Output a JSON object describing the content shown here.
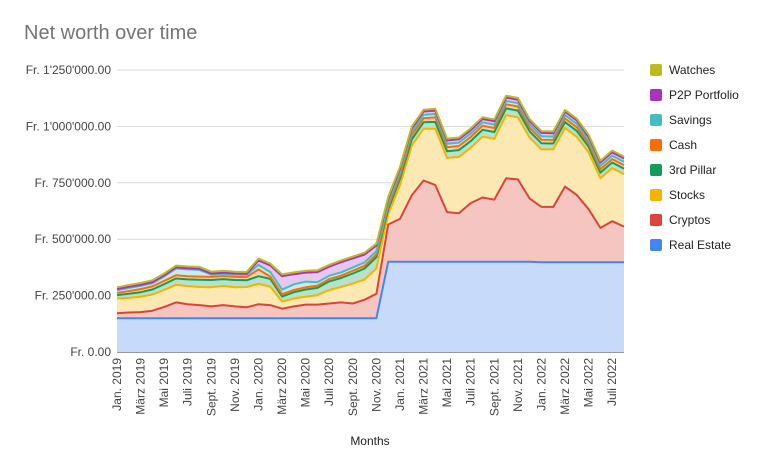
{
  "chart_data": {
    "type": "area",
    "stacked": true,
    "title": "Net worth over time",
    "xlabel": "Months",
    "ylabel": "",
    "ylim": [
      0,
      1250000
    ],
    "y_ticks": [
      0,
      250000,
      500000,
      750000,
      1000000,
      1250000
    ],
    "y_tick_labels": [
      "Fr. 0.00",
      "Fr. 250'000.00",
      "Fr. 500'000.00",
      "Fr. 750'000.00",
      "Fr. 1'000'000.00",
      "Fr. 1'250'000.00"
    ],
    "grid": true,
    "legend_position": "right",
    "categories": [
      "Jan. 2019",
      "Feb. 2019",
      "März 2019",
      "Apr. 2019",
      "Mai 2019",
      "Juni 2019",
      "Juli 2019",
      "Aug. 2019",
      "Sept. 2019",
      "Okt. 2019",
      "Nov. 2019",
      "Dez. 2019",
      "Jan. 2020",
      "Feb. 2020",
      "März 2020",
      "Apr. 2020",
      "Mai 2020",
      "Juni 2020",
      "Juli 2020",
      "Aug. 2020",
      "Sept. 2020",
      "Okt. 2020",
      "Nov. 2020",
      "Dez. 2020",
      "Jan. 2021",
      "Feb. 2021",
      "März 2021",
      "Apr. 2021",
      "Mai 2021",
      "Juni 2021",
      "Juli 2021",
      "Aug. 2021",
      "Sept. 2021",
      "Okt. 2021",
      "Nov. 2021",
      "Dez. 2021",
      "Jan. 2022",
      "Feb. 2022",
      "März 2022",
      "Apr. 2022",
      "Mai 2022",
      "Juni 2022",
      "Juli 2022",
      "Aug. 2022"
    ],
    "shown_tick_labels": [
      "Jan. 2019",
      "März 2019",
      "Mai 2019",
      "Juli 2019",
      "Sept. 2019",
      "Nov. 2019",
      "Jan. 2020",
      "März 2020",
      "Mai 2020",
      "Juli 2020",
      "Sept. 2020",
      "Nov. 2020",
      "Jan. 2021",
      "März 2021",
      "Mai 2021",
      "Juli 2021",
      "Sept. 2021",
      "Nov. 2021",
      "Jan. 2022",
      "März 2022",
      "Mai 2022",
      "Juli 2022"
    ],
    "series": [
      {
        "name": "Real Estate",
        "color": "#4285f4",
        "fill": "#c8daf9",
        "values": [
          150000,
          150000,
          150000,
          150000,
          150000,
          150000,
          150000,
          150000,
          150000,
          150000,
          150000,
          150000,
          150000,
          150000,
          150000,
          150000,
          150000,
          150000,
          150000,
          150000,
          150000,
          150000,
          150000,
          400000,
          400000,
          400000,
          400000,
          400000,
          400000,
          400000,
          400000,
          400000,
          400000,
          400000,
          400000,
          400000,
          398000,
          398000,
          398000,
          398000,
          398000,
          398000,
          398000,
          398000
        ]
      },
      {
        "name": "Cryptos",
        "color": "#db4437",
        "fill": "#f5c6c1",
        "values": [
          22000,
          25000,
          27000,
          33000,
          50000,
          70000,
          62000,
          58000,
          52000,
          58000,
          52000,
          48000,
          62000,
          58000,
          42000,
          52000,
          60000,
          60000,
          65000,
          70000,
          65000,
          82000,
          108000,
          165000,
          190000,
          295000,
          360000,
          340000,
          220000,
          215000,
          260000,
          285000,
          275000,
          370000,
          365000,
          280000,
          245000,
          245000,
          335000,
          298000,
          235000,
          152000,
          182000,
          158000
        ]
      },
      {
        "name": "Stocks",
        "color": "#f4b400",
        "fill": "#fce8b2",
        "values": [
          65000,
          65000,
          68000,
          72000,
          75000,
          78000,
          80000,
          80000,
          85000,
          85000,
          85000,
          90000,
          90000,
          82000,
          32000,
          35000,
          35000,
          42000,
          60000,
          68000,
          88000,
          90000,
          112000,
          45000,
          150000,
          220000,
          230000,
          250000,
          240000,
          250000,
          245000,
          270000,
          270000,
          280000,
          275000,
          270000,
          255000,
          255000,
          260000,
          258000,
          252000,
          220000,
          235000,
          232000
        ]
      },
      {
        "name": "3rd Pillar",
        "color": "#0f9d58",
        "fill": "#b7e1cd",
        "values": [
          15000,
          18000,
          20000,
          22000,
          26000,
          28000,
          30000,
          32000,
          32000,
          30000,
          32000,
          30000,
          34000,
          34000,
          22000,
          28000,
          32000,
          32000,
          38000,
          40000,
          45000,
          48000,
          50000,
          22000,
          28000,
          28000,
          28000,
          30000,
          30000,
          30000,
          30000,
          30000,
          30000,
          30000,
          30000,
          28000,
          27000,
          26000,
          26000,
          26000,
          25000,
          25000,
          25000,
          25000
        ]
      },
      {
        "name": "Cash",
        "color": "#ff6d01",
        "fill": "#ffd3b3",
        "values": [
          10000,
          12000,
          14000,
          14000,
          14000,
          14000,
          14000,
          14000,
          14000,
          14000,
          14000,
          14000,
          30000,
          10000,
          10000,
          10000,
          10000,
          10000,
          10000,
          10000,
          12000,
          12000,
          12000,
          12000,
          15000,
          18000,
          18000,
          20000,
          18000,
          18000,
          18000,
          18000,
          18000,
          18000,
          18000,
          16000,
          16000,
          16000,
          16000,
          16000,
          15000,
          15000,
          15000,
          15000
        ]
      },
      {
        "name": "Savings",
        "color": "#46bdc6",
        "fill": "#c8ebee",
        "values": [
          12000,
          14000,
          14000,
          14000,
          20000,
          30000,
          30000,
          30000,
          10000,
          10000,
          10000,
          10000,
          20000,
          20000,
          20000,
          25000,
          25000,
          15000,
          15000,
          15000,
          15000,
          15000,
          15000,
          15000,
          15000,
          15000,
          15000,
          15000,
          15000,
          15000,
          15000,
          15000,
          15000,
          15000,
          15000,
          15000,
          15000,
          15000,
          15000,
          15000,
          15000,
          15000,
          15000,
          15000
        ]
      },
      {
        "name": "P2P Portfolio",
        "color": "#ab30c4",
        "fill": "#e6c7ed",
        "values": [
          5000,
          5000,
          5000,
          5000,
          5000,
          5000,
          5000,
          5000,
          5000,
          5000,
          5000,
          5000,
          20000,
          30000,
          60000,
          45000,
          40000,
          45000,
          40000,
          45000,
          40000,
          35000,
          25000,
          20000,
          15000,
          15000,
          15000,
          15000,
          15000,
          15000,
          15000,
          15000,
          15000,
          15000,
          15000,
          15000,
          15000,
          15000,
          15000,
          15000,
          15000,
          15000,
          15000,
          15000
        ]
      },
      {
        "name": "Watches",
        "color": "#bcbc21",
        "fill": "#e9eab7",
        "values": [
          8000,
          8000,
          8000,
          8000,
          8000,
          8000,
          8000,
          8000,
          8000,
          8000,
          8000,
          8000,
          8000,
          8000,
          8000,
          8000,
          8000,
          8000,
          8000,
          8000,
          8000,
          8000,
          8000,
          8000,
          8000,
          8000,
          8000,
          8000,
          8000,
          8000,
          8000,
          8000,
          8000,
          8000,
          8000,
          8000,
          8000,
          8000,
          8000,
          8000,
          8000,
          8000,
          8000,
          8000
        ]
      }
    ]
  }
}
